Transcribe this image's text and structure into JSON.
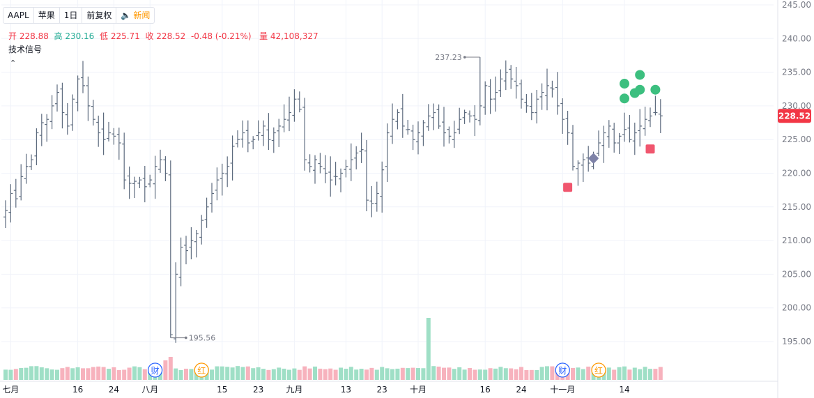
{
  "header": {
    "symbol": "AAPL",
    "name": "苹果",
    "interval": "1日",
    "adjust": "前复权",
    "news_label": "新闻"
  },
  "ohlc": {
    "open_label": "开",
    "open": "228.88",
    "high_label": "高",
    "high": "230.16",
    "low_label": "低",
    "low": "225.71",
    "close_label": "收",
    "close": "228.52",
    "change": "-0.48 (-0.21%)",
    "volume_label": "量",
    "volume": "42,108,327"
  },
  "indicator": {
    "label": "技术信号",
    "collapse_icon": "chevron-up-icon"
  },
  "colors": {
    "up": "#22ab94",
    "down": "#f23645",
    "bar": "#5d6b7e",
    "vol_up": "#9fdfc6",
    "vol_down": "#f7b2bd",
    "signal_buy": "#3cbf7f",
    "signal_sell": "#f0566e",
    "signal_neutral": "#7f83a8"
  },
  "chart_data": {
    "type": "ohlc",
    "y_axis": {
      "min": 190,
      "max": 245,
      "ticks": [
        195,
        200,
        205,
        210,
        215,
        220,
        225,
        230,
        235,
        240,
        245
      ],
      "tick_labels": [
        "195.00",
        "200.00",
        "205.00",
        "210.00",
        "215.00",
        "220.00",
        "225.00",
        "230.00",
        "235.00",
        "240.00",
        "245.00"
      ]
    },
    "x_axis_labels": [
      {
        "label": "七月",
        "index": 1
      },
      {
        "label": "16",
        "index": 14
      },
      {
        "label": "24",
        "index": 21
      },
      {
        "label": "八月",
        "index": 28
      },
      {
        "label": "15",
        "index": 42
      },
      {
        "label": "23",
        "index": 49
      },
      {
        "label": "九月",
        "index": 56
      },
      {
        "label": "13",
        "index": 66
      },
      {
        "label": "23",
        "index": 73
      },
      {
        "label": "十月",
        "index": 80
      },
      {
        "label": "16",
        "index": 93
      },
      {
        "label": "24",
        "index": 100
      },
      {
        "label": "十一月",
        "index": 108
      },
      {
        "label": "14",
        "index": 120
      }
    ],
    "last_price": "228.52",
    "highest": {
      "label": "237.23",
      "index": 92,
      "value": 237.23
    },
    "lowest": {
      "label": "195.56",
      "index": 32,
      "value": 195.56
    },
    "events": [
      {
        "label": "财",
        "index": 29,
        "color": "#2962ff"
      },
      {
        "label": "红",
        "index": 38,
        "color": "#ff9800"
      },
      {
        "label": "财",
        "index": 108,
        "color": "#2962ff"
      },
      {
        "label": "红",
        "index": 115,
        "color": "#ff9800"
      }
    ],
    "signals": [
      {
        "type": "sell",
        "index": 109,
        "value": 217.9
      },
      {
        "type": "neutral",
        "index": 114,
        "value": 222.2
      },
      {
        "type": "sell",
        "index": 125,
        "value": 223.6
      },
      {
        "type": "buy",
        "index": 120,
        "value": 233.3
      },
      {
        "type": "buy",
        "index": 120,
        "value": 231.1
      },
      {
        "type": "buy",
        "index": 122,
        "value": 231.9
      },
      {
        "type": "buy",
        "index": 123,
        "value": 234.6
      },
      {
        "type": "buy",
        "index": 123,
        "value": 232.4
      },
      {
        "type": "buy",
        "index": 126,
        "value": 232.4
      }
    ],
    "closes": [
      214.5,
      217,
      216.2,
      219.5,
      221,
      222,
      226,
      227.5,
      228,
      230,
      232,
      229,
      227,
      231,
      234,
      233,
      230,
      228,
      226,
      225,
      226,
      225.5,
      224.5,
      219,
      218.5,
      218.8,
      219,
      218,
      219,
      221,
      222,
      220,
      196,
      205,
      209,
      208.5,
      210,
      211,
      213,
      215,
      217,
      219,
      220,
      221,
      224,
      225,
      226,
      224.5,
      225,
      226,
      227,
      225,
      226,
      227,
      228,
      229,
      231,
      229.5,
      222,
      221,
      222,
      221,
      220,
      219,
      219.5,
      220,
      221,
      222,
      223,
      223.5,
      216,
      215.5,
      217,
      220.5,
      226,
      228,
      229,
      227,
      226.5,
      225,
      226,
      227.5,
      228.5,
      229,
      227,
      226,
      225.5,
      226,
      228,
      229,
      228.5,
      228,
      230,
      233,
      231,
      232,
      234,
      235,
      234,
      233,
      231,
      230,
      229,
      231,
      232,
      233,
      232.5,
      230,
      228,
      226,
      221,
      221.5,
      222,
      221.5,
      222.5,
      224.5,
      226,
      227,
      224.5,
      225.5,
      226.5,
      225,
      226,
      227,
      228,
      228.5,
      229,
      228.52
    ]
  }
}
